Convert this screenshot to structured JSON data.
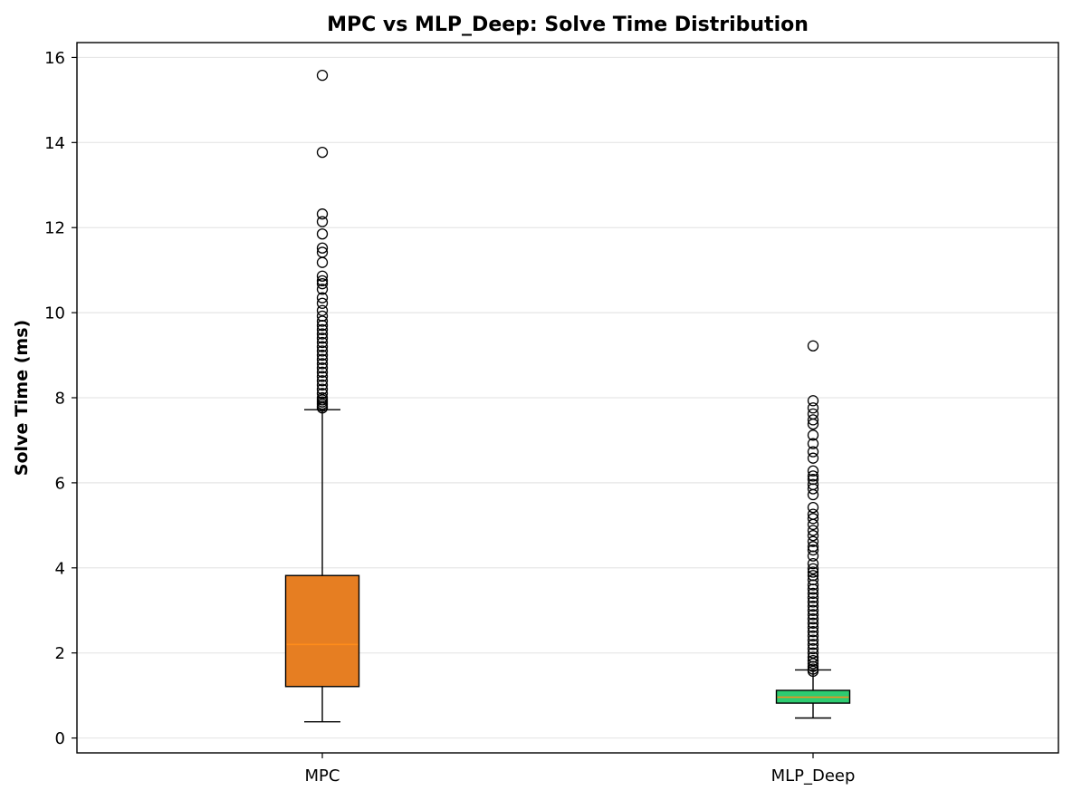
{
  "chart_data": {
    "type": "box",
    "title": "MPC vs MLP_Deep: Solve Time Distribution",
    "xlabel": "",
    "ylabel": "Solve Time (ms)",
    "ylim": [
      -0.35,
      16.35
    ],
    "yticks": [
      0,
      2,
      4,
      6,
      8,
      10,
      12,
      14,
      16
    ],
    "grid": "y",
    "categories": [
      "MPC",
      "MLP_Deep"
    ],
    "boxes": [
      {
        "label": "MPC",
        "color": "#e67e22",
        "median_color": "#ff8c1a",
        "whisker_low": 0.38,
        "q1": 1.21,
        "median": 2.2,
        "q3": 3.82,
        "whisker_high": 7.72,
        "outliers": [
          15.58,
          13.77,
          12.32,
          12.14,
          11.85,
          11.52,
          11.42,
          11.18,
          10.86,
          10.75,
          10.68,
          10.55,
          10.35,
          10.22,
          10.05,
          9.92,
          9.8,
          9.7,
          9.6,
          9.5,
          9.4,
          9.3,
          9.2,
          9.1,
          9.0,
          8.9,
          8.8,
          8.7,
          8.6,
          8.5,
          8.4,
          8.3,
          8.2,
          8.1,
          8.0,
          7.95,
          7.9,
          7.85,
          7.8,
          7.76
        ]
      },
      {
        "label": "MLP_Deep",
        "color": "#2ecc71",
        "median_color": "#ff8c1a",
        "whisker_low": 0.47,
        "q1": 0.82,
        "median": 0.96,
        "q3": 1.12,
        "whisker_high": 1.6,
        "outliers": [
          9.22,
          7.93,
          7.76,
          7.62,
          7.48,
          7.38,
          7.12,
          6.92,
          6.73,
          6.58,
          6.28,
          6.16,
          6.08,
          5.96,
          5.86,
          5.72,
          5.42,
          5.26,
          5.16,
          5.02,
          4.88,
          4.76,
          4.62,
          4.5,
          4.42,
          4.28,
          4.1,
          3.98,
          3.9,
          3.82,
          3.72,
          3.6,
          3.5,
          3.4,
          3.3,
          3.2,
          3.1,
          3.0,
          2.9,
          2.8,
          2.7,
          2.6,
          2.5,
          2.4,
          2.3,
          2.2,
          2.1,
          2.0,
          1.9,
          1.82,
          1.75,
          1.68,
          1.62,
          1.57
        ]
      }
    ]
  }
}
